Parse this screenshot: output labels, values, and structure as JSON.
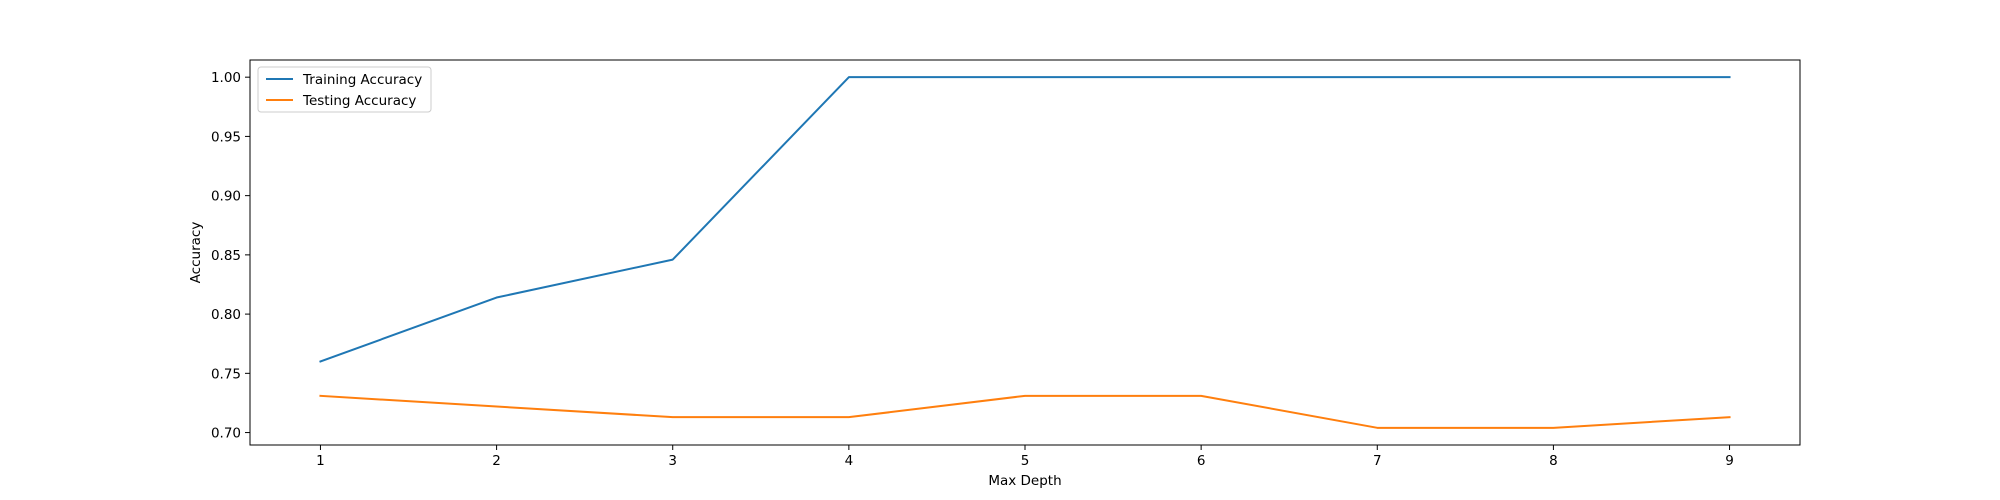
{
  "chart_data": {
    "type": "line",
    "title": "",
    "xlabel": "Max Depth",
    "ylabel": "Accuracy",
    "x": [
      1,
      2,
      3,
      4,
      5,
      6,
      7,
      8,
      9
    ],
    "xticks": [
      "1",
      "2",
      "3",
      "4",
      "5",
      "6",
      "7",
      "8",
      "9"
    ],
    "yticks": [
      "0.70",
      "0.75",
      "0.80",
      "0.85",
      "0.90",
      "0.95",
      "1.00"
    ],
    "xlim": [
      0.6,
      9.4
    ],
    "ylim": [
      0.6895,
      1.0145
    ],
    "grid": false,
    "legend_position": "top-left",
    "series": [
      {
        "name": "Training Accuracy",
        "color": "#1f77b4",
        "values": [
          0.76,
          0.814,
          0.846,
          1.0,
          1.0,
          1.0,
          1.0,
          1.0,
          1.0
        ]
      },
      {
        "name": "Testing Accuracy",
        "color": "#ff7f0e",
        "values": [
          0.731,
          0.722,
          0.713,
          0.713,
          0.731,
          0.731,
          0.704,
          0.704,
          0.713
        ]
      }
    ]
  }
}
